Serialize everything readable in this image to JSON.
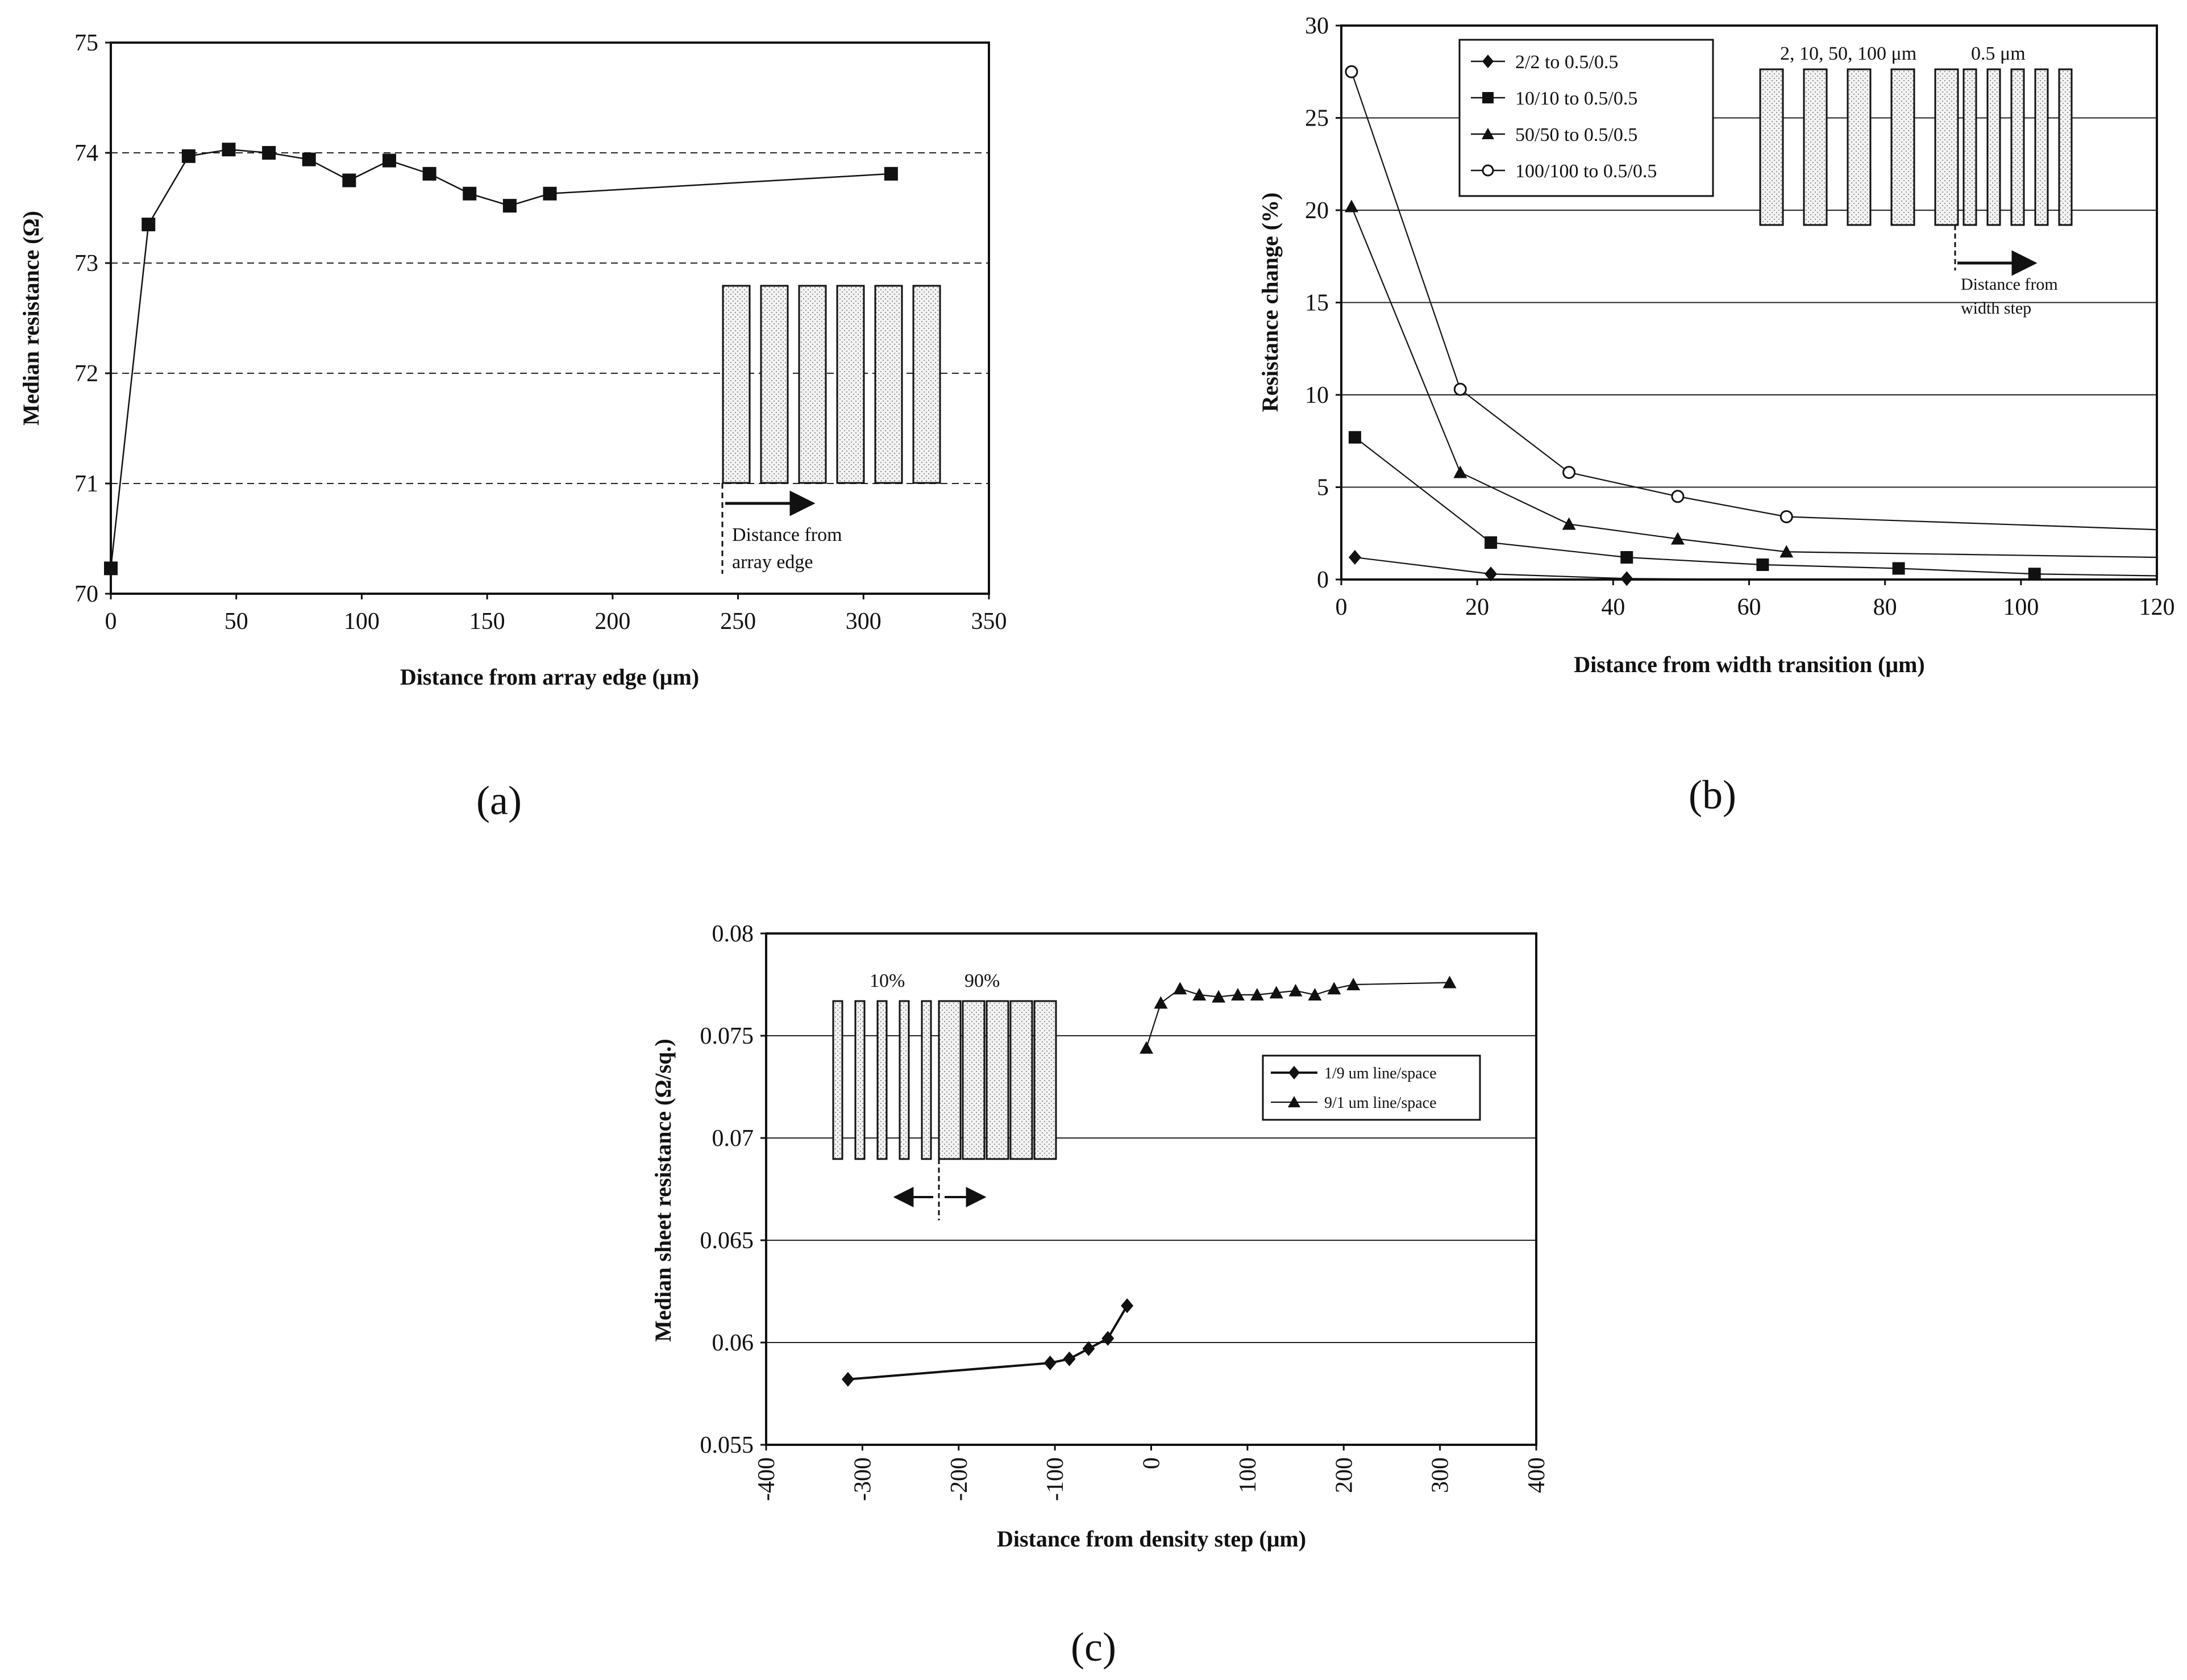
{
  "figure": {
    "labels": {
      "a": "(a)",
      "b": "(b)",
      "c": "(c)"
    }
  },
  "chart_data": [
    {
      "id": "a",
      "type": "line",
      "title": "",
      "xlabel": "Distance from array edge (μm)",
      "ylabel": "Median resistance (Ω)",
      "xlim": [
        0,
        350
      ],
      "ylim": [
        70,
        75
      ],
      "xticks": [
        0,
        50,
        100,
        150,
        200,
        250,
        300,
        350
      ],
      "yticks": [
        70,
        71,
        72,
        73,
        74,
        75
      ],
      "grid": "horizontal-dashed",
      "series": [
        {
          "name": "Median resistance",
          "marker": "square",
          "x": [
            0,
            15,
            31,
            47,
            63,
            79,
            95,
            111,
            127,
            143,
            159,
            175,
            311
          ],
          "y": [
            70.23,
            73.35,
            73.97,
            74.03,
            74.0,
            73.94,
            73.75,
            73.93,
            73.81,
            73.63,
            73.52,
            73.63,
            73.81
          ]
        }
      ],
      "inset": {
        "caption": [
          "Distance from",
          "array edge"
        ]
      }
    },
    {
      "id": "b",
      "type": "line",
      "title": "",
      "xlabel": "Distance from width transition (μm)",
      "ylabel": "Resistance change (%)",
      "xlim": [
        0,
        120
      ],
      "ylim": [
        0,
        30
      ],
      "xticks": [
        0,
        20,
        40,
        60,
        80,
        100,
        120
      ],
      "yticks": [
        0,
        5,
        10,
        15,
        20,
        25,
        30
      ],
      "grid": "horizontal",
      "legend_position": "top-left",
      "series": [
        {
          "name": "2/2 to 0.5/0.5",
          "marker": "diamond",
          "x": [
            2,
            22,
            42
          ],
          "y": [
            1.2,
            0.3,
            0.05
          ],
          "tail": [
            [
              42,
              0.05
            ],
            [
              62,
              0.0
            ]
          ]
        },
        {
          "name": "10/10 to 0.5/0.5",
          "marker": "square",
          "x": [
            2,
            22,
            42,
            62,
            82,
            102
          ],
          "y": [
            7.7,
            2.0,
            1.2,
            0.8,
            0.6,
            0.3
          ],
          "tail": [
            [
              102,
              0.3
            ],
            [
              120,
              0.2
            ]
          ]
        },
        {
          "name": "50/50 to 0.5/0.5",
          "marker": "triangle",
          "x": [
            1.5,
            17.5,
            33.5,
            49.5,
            65.5
          ],
          "y": [
            20.2,
            5.8,
            3.0,
            2.2,
            1.5
          ],
          "tail": [
            [
              65.5,
              1.5
            ],
            [
              120,
              1.2
            ]
          ]
        },
        {
          "name": "100/100 to 0.5/0.5",
          "marker": "open-circle",
          "x": [
            1.5,
            17.5,
            33.5,
            49.5,
            65.5
          ],
          "y": [
            27.5,
            10.3,
            5.8,
            4.5,
            3.4
          ],
          "tail": [
            [
              65.5,
              3.4
            ],
            [
              120,
              2.7
            ]
          ]
        }
      ],
      "inset": {
        "label_left": "2, 10, 50, 100 μm",
        "label_right": "0.5 μm",
        "caption": [
          "Distance from",
          "width step"
        ]
      }
    },
    {
      "id": "c",
      "type": "line",
      "title": "",
      "xlabel": "Distance from density step (μm)",
      "ylabel": "Median sheet resistance (Ω/sq.)",
      "xlim": [
        -400,
        400
      ],
      "ylim": [
        0.055,
        0.08
      ],
      "xticks": [
        -400,
        -300,
        -200,
        -100,
        0,
        100,
        200,
        300,
        400
      ],
      "yticks": [
        0.055,
        0.06,
        0.065,
        0.07,
        0.075,
        0.08
      ],
      "ytick_labels": [
        "0.055",
        "0.06",
        "0.065",
        "0.07",
        "0.075",
        "0.08"
      ],
      "grid": "horizontal",
      "legend_position": "right",
      "series": [
        {
          "name": "1/9 um line/space",
          "marker": "diamond",
          "x": [
            -315,
            -105,
            -85,
            -65,
            -45,
            -25
          ],
          "y": [
            0.0582,
            0.059,
            0.0592,
            0.0597,
            0.0602,
            0.0618
          ]
        },
        {
          "name": "9/1 um line/space",
          "marker": "triangle",
          "x": [
            -5,
            10,
            30,
            50,
            70,
            90,
            110,
            130,
            150,
            170,
            190,
            210,
            310
          ],
          "y": [
            0.0744,
            0.0766,
            0.0773,
            0.077,
            0.0769,
            0.077,
            0.077,
            0.0771,
            0.0772,
            0.077,
            0.0773,
            0.0775,
            0.0776
          ]
        }
      ],
      "inset": {
        "label_left": "10%",
        "label_right": "90%"
      }
    }
  ]
}
